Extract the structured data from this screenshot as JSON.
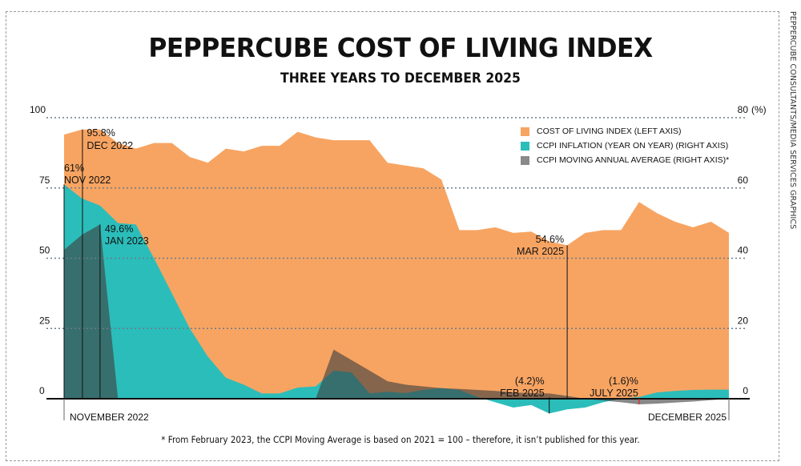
{
  "side_credit": "PEPPERCUBE CONSULTANTS/MEDIA SERVICES GRAPHICS",
  "footnote": "* From February 2023, the CCPI Moving Average is based on 2021 = 100 – therefore, it isn’t published for this year.",
  "colors": {
    "orange": "#F7A462",
    "teal": "#2BBDBA",
    "grey": "#3F3F3F",
    "red": "#E8221F"
  },
  "chart_data": {
    "type": "area",
    "title": "PEPPERCUBE COST OF LIVING INDEX",
    "subtitle": "THREE YEARS TO DECEMBER 2025",
    "x": [
      "Nov 2022",
      "Dec 2022",
      "Jan 2023",
      "Feb 2023",
      "Mar 2023",
      "Apr 2023",
      "May 2023",
      "Jun 2023",
      "Jul 2023",
      "Aug 2023",
      "Sep 2023",
      "Oct 2023",
      "Nov 2023",
      "Dec 2023",
      "Jan 2024",
      "Feb 2024",
      "Mar 2024",
      "Apr 2024",
      "May 2024",
      "Jun 2024",
      "Jul 2024",
      "Aug 2024",
      "Sep 2024",
      "Oct 2024",
      "Nov 2024",
      "Dec 2024",
      "Jan 2025",
      "Feb 2025",
      "Mar 2025",
      "Apr 2025",
      "May 2025",
      "Jun 2025",
      "Jul 2025",
      "Aug 2025",
      "Sep 2025",
      "Oct 2025",
      "Nov 2025",
      "Dec 2025"
    ],
    "x_tick_labels": {
      "start": "NOVEMBER 2022",
      "end": "DECEMBER 2025"
    },
    "left_axis": {
      "ylim": [
        0,
        100
      ],
      "ticks": [
        "0",
        "25",
        "50",
        "75",
        "100"
      ]
    },
    "right_axis": {
      "ylim": [
        0,
        80
      ],
      "ticks": [
        "0",
        "20",
        "40",
        "60",
        "80"
      ],
      "unit": "(%)"
    },
    "grid": true,
    "legend_position": "top-right",
    "series": [
      {
        "name": "COST OF LIVING INDEX (LEFT AXIS)",
        "axis": "left",
        "color": "#F7A462",
        "values": [
          94,
          95.8,
          95.8,
          91,
          89,
          91,
          91,
          86,
          84,
          89,
          88,
          90,
          90,
          95,
          93,
          92,
          92,
          92,
          84,
          83,
          82,
          78,
          60,
          60,
          61,
          59,
          59.5,
          56,
          54.6,
          59,
          60,
          60,
          70,
          66,
          63,
          61,
          63,
          59
        ]
      },
      {
        "name": "CCPI INFLATION (YEAR ON YEAR) (RIGHT AXIS)",
        "axis": "right",
        "color": "#2BBDBA",
        "values": [
          61,
          57,
          55,
          50,
          49.6,
          40,
          30,
          20,
          12,
          6,
          4,
          1.5,
          1.5,
          3.2,
          3.5,
          8,
          7.5,
          1.5,
          2,
          1.6,
          2.5,
          3,
          2.5,
          0.5,
          -1,
          -2.5,
          -1.8,
          -4.2,
          -3,
          -2.5,
          -1,
          0,
          0.5,
          1.8,
          2.2,
          2.5,
          2.6,
          2.6
        ]
      },
      {
        "name": "CCPI MOVING ANNUAL AVERAGE (RIGHT AXIS)*",
        "axis": "right",
        "color": "#3F3F3F",
        "values": [
          42.4,
          46.7,
          49.6,
          0,
          null,
          null,
          null,
          null,
          null,
          null,
          null,
          null,
          null,
          null,
          0,
          14,
          11,
          8,
          5,
          4,
          3.5,
          3,
          2.8,
          2.5,
          2.2,
          1.8,
          1.6,
          1.5,
          0.8,
          0,
          -0.5,
          -1,
          -1.6,
          -1.4,
          -1.1,
          -0.8,
          -0.4,
          0
        ]
      }
    ],
    "annotations": [
      {
        "value": "61%",
        "label": "NOV 2022",
        "x": "Nov 2022",
        "series": "CCPI INFLATION (YEAR ON YEAR) (RIGHT AXIS)",
        "color": "#111111"
      },
      {
        "value": "95.8%",
        "label": "DEC 2022",
        "x": "Dec 2022",
        "series": "COST OF LIVING INDEX (LEFT AXIS)",
        "color": "#111111"
      },
      {
        "value": "49.6%",
        "label": "JAN 2023",
        "x": "Jan 2023",
        "series": "CCPI MOVING ANNUAL AVERAGE (RIGHT AXIS)*",
        "color": "#111111"
      },
      {
        "value": "54.6%",
        "label": "MAR 2025",
        "x": "Mar 2025",
        "series": "COST OF LIVING INDEX (LEFT AXIS)",
        "color": "#111111"
      },
      {
        "value": "(4.2)%",
        "label": "FEB 2025",
        "x": "Feb 2025",
        "series": "CCPI INFLATION (YEAR ON YEAR) (RIGHT AXIS)",
        "color": "#111111"
      },
      {
        "value": "(1.6)%",
        "label": "JULY 2025",
        "x": "Jul 2025",
        "series": "CCPI MOVING ANNUAL AVERAGE (RIGHT AXIS)*",
        "color": "#E8221F"
      }
    ]
  }
}
